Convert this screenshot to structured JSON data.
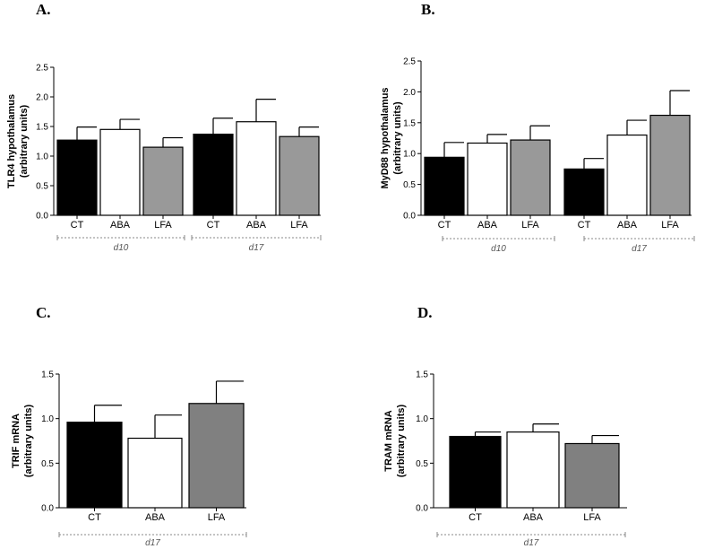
{
  "chart_data": [
    {
      "type": "bar",
      "panel": "A.",
      "ylabel_line1": "TLR4 hypothalamus",
      "ylabel_line2": "(arbitrary units)",
      "ylim": [
        0,
        2.5
      ],
      "yticks": [
        "0.0",
        "0.5",
        "1.0",
        "1.5",
        "2.0",
        "2.5"
      ],
      "categories": [
        "CT",
        "ABA",
        "LFA",
        "CT",
        "ABA",
        "LFA"
      ],
      "groups": [
        {
          "label": "d10",
          "start": 0,
          "end": 2
        },
        {
          "label": "d17",
          "start": 3,
          "end": 5
        }
      ],
      "values": [
        1.27,
        1.45,
        1.15,
        1.37,
        1.58,
        1.33
      ],
      "errors": [
        0.22,
        0.17,
        0.16,
        0.27,
        0.38,
        0.16
      ],
      "fills": [
        "#000000",
        "#ffffff",
        "#999999",
        "#000000",
        "#ffffff",
        "#999999"
      ]
    },
    {
      "type": "bar",
      "panel": "B.",
      "ylabel_line1": "MyD88 hypothalamus",
      "ylabel_line2": "(arbitrary units)",
      "ylim": [
        0,
        2.5
      ],
      "yticks": [
        "0.0",
        "0.5",
        "1.0",
        "1.5",
        "2.0",
        "2.5"
      ],
      "categories": [
        "CT",
        "ABA",
        "LFA",
        "CT",
        "ABA",
        "LFA"
      ],
      "groups": [
        {
          "label": "d10",
          "start": 0,
          "end": 2
        },
        {
          "label": "d17",
          "start": 3,
          "end": 5
        }
      ],
      "values": [
        0.94,
        1.17,
        1.22,
        0.75,
        1.3,
        1.62
      ],
      "errors": [
        0.24,
        0.14,
        0.23,
        0.17,
        0.24,
        0.4
      ],
      "fills": [
        "#000000",
        "#ffffff",
        "#999999",
        "#000000",
        "#ffffff",
        "#999999"
      ]
    },
    {
      "type": "bar",
      "panel": "C.",
      "ylabel_line1": "TRIF mRNA",
      "ylabel_line2": "(arbitrary units)",
      "ylim": [
        0,
        1.5
      ],
      "yticks": [
        "0.0",
        "0.5",
        "1.0",
        "1.5"
      ],
      "categories": [
        "CT",
        "ABA",
        "LFA"
      ],
      "groups": [
        {
          "label": "d17",
          "start": 0,
          "end": 2
        }
      ],
      "values": [
        0.96,
        0.78,
        1.17
      ],
      "errors": [
        0.19,
        0.26,
        0.25
      ],
      "fills": [
        "#000000",
        "#ffffff",
        "#808080"
      ]
    },
    {
      "type": "bar",
      "panel": "D.",
      "ylabel_line1": "TRAM mRNA",
      "ylabel_line2": "(arbitrary units)",
      "ylim": [
        0,
        1.5
      ],
      "yticks": [
        "0.0",
        "0.5",
        "1.0",
        "1.5"
      ],
      "categories": [
        "CT",
        "ABA",
        "LFA"
      ],
      "groups": [
        {
          "label": "d17",
          "start": 0,
          "end": 2
        }
      ],
      "values": [
        0.8,
        0.85,
        0.72
      ],
      "errors": [
        0.05,
        0.09,
        0.09
      ],
      "fills": [
        "#000000",
        "#ffffff",
        "#808080"
      ]
    }
  ]
}
